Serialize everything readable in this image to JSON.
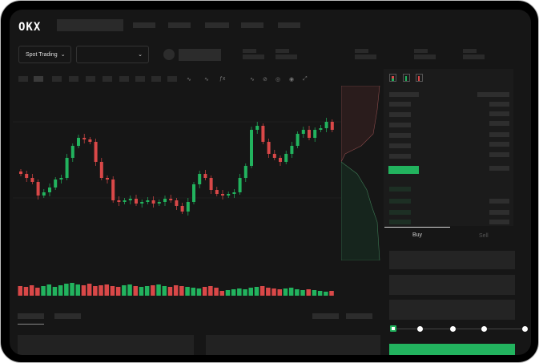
{
  "header": {
    "logo": "OKX"
  },
  "market": {
    "mode_label": "Spot Trading",
    "mode_chevron": "chevron-down-icon",
    "pair_chevron": "chevron-down-icon"
  },
  "toolbar": {
    "icons": [
      "indicator-icon",
      "indicator-icon",
      "fx-icon",
      "line-icon",
      "draw-icon",
      "camera-icon",
      "settings-icon",
      "fullscreen-icon"
    ]
  },
  "order_form": {
    "buy_tab": "Buy",
    "sell_tab": "Sell",
    "slider_percent": 0
  },
  "colors": {
    "up": "#22b35e",
    "down": "#d94848",
    "bg": "#161616"
  },
  "chart_data": {
    "type": "candlestick",
    "closes": [
      95,
      90,
      85,
      68,
      72,
      78,
      88,
      90,
      115,
      130,
      140,
      138,
      135,
      110,
      90,
      88,
      62,
      60,
      62,
      64,
      58,
      60,
      62,
      58,
      60,
      64,
      62,
      55,
      48,
      60,
      82,
      95,
      90,
      75,
      70,
      68,
      70,
      72,
      90,
      105,
      150,
      155,
      135,
      120,
      115,
      110,
      120,
      130,
      145,
      150,
      140,
      150,
      152,
      160,
      150
    ],
    "volumes": [
      12,
      11,
      13,
      10,
      12,
      14,
      11,
      13,
      15,
      16,
      14,
      13,
      15,
      12,
      13,
      14,
      12,
      11,
      13,
      14,
      12,
      11,
      12,
      13,
      14,
      12,
      11,
      13,
      12,
      11,
      10,
      9,
      11,
      12,
      10,
      6,
      7,
      8,
      9,
      8,
      10,
      11,
      12,
      10,
      9,
      8,
      9,
      10,
      8,
      7,
      8,
      7,
      6,
      5,
      6
    ]
  }
}
